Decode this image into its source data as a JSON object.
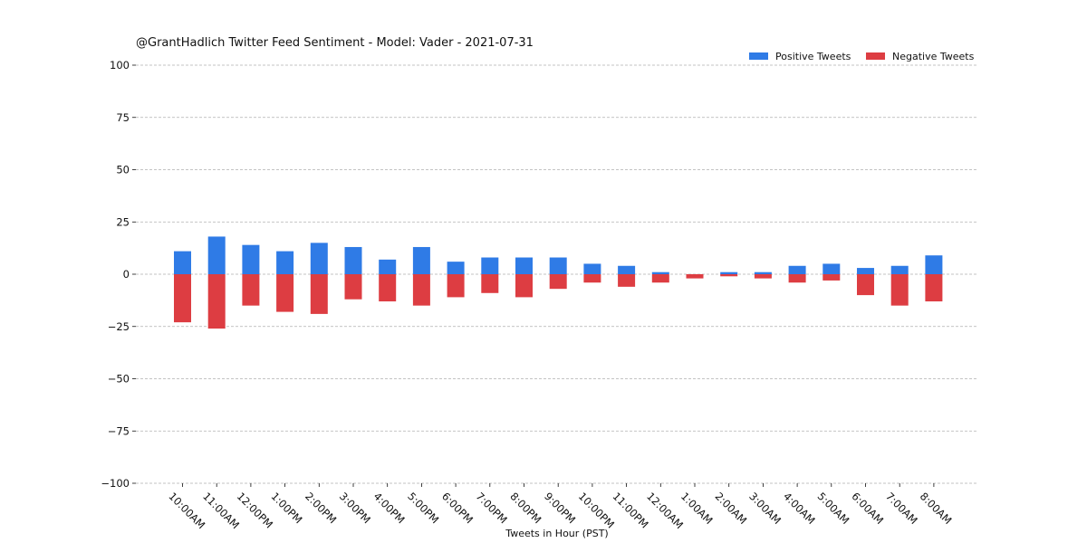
{
  "chart_data": {
    "type": "bar",
    "title": "@GrantHadlich Twitter Feed Sentiment - Model: Vader - 2021-07-31",
    "xlabel": "Tweets in Hour (PST)",
    "ylabel": "",
    "ylim": [
      -100,
      100
    ],
    "yticks": [
      100,
      75,
      50,
      25,
      0,
      -25,
      -50,
      -75,
      -100
    ],
    "ytick_labels": [
      "100",
      "75",
      "50",
      "25",
      "0",
      "−25",
      "−50",
      "−75",
      "−100"
    ],
    "grid": true,
    "legend_position": "top-right",
    "categories": [
      "10:00AM",
      "11:00AM",
      "12:00PM",
      "1:00PM",
      "2:00PM",
      "3:00PM",
      "4:00PM",
      "5:00PM",
      "6:00PM",
      "7:00PM",
      "8:00PM",
      "9:00PM",
      "10:00PM",
      "11:00PM",
      "12:00AM",
      "1:00AM",
      "2:00AM",
      "3:00AM",
      "4:00AM",
      "5:00AM",
      "6:00AM",
      "7:00AM",
      "8:00AM"
    ],
    "series": [
      {
        "name": "Positive Tweets",
        "color": "#2f7be6",
        "values": [
          11,
          18,
          14,
          11,
          15,
          13,
          7,
          13,
          6,
          8,
          8,
          8,
          5,
          4,
          1,
          0,
          1,
          1,
          4,
          5,
          3,
          4,
          9
        ]
      },
      {
        "name": "Negative Tweets",
        "color": "#dd3d42",
        "values": [
          -23,
          -26,
          -15,
          -18,
          -19,
          -12,
          -13,
          -15,
          -11,
          -9,
          -11,
          -7,
          -4,
          -6,
          -4,
          -2,
          -1,
          -2,
          -4,
          -3,
          -10,
          -15,
          -13
        ]
      }
    ]
  }
}
